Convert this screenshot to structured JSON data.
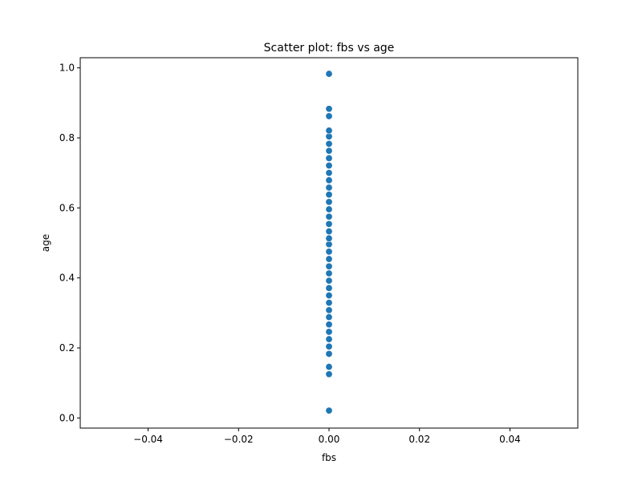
{
  "chart_data": {
    "type": "scatter",
    "title": "Scatter plot: fbs vs age",
    "xlabel": "fbs",
    "ylabel": "age",
    "xlim": [
      -0.055,
      0.055
    ],
    "ylim": [
      -0.029,
      1.029
    ],
    "xticks": [
      -0.04,
      -0.02,
      0.0,
      0.02,
      0.04
    ],
    "xtick_labels": [
      "−0.04",
      "−0.02",
      "0.00",
      "0.02",
      "0.04"
    ],
    "yticks": [
      0.0,
      0.2,
      0.4,
      0.6,
      0.8,
      1.0
    ],
    "ytick_labels": [
      "0.0",
      "0.2",
      "0.4",
      "0.6",
      "0.8",
      "1.0"
    ],
    "grid": false,
    "marker_color": "#1f77b4",
    "points": [
      {
        "x": 0,
        "y": 0.021
      },
      {
        "x": 0,
        "y": 0.125
      },
      {
        "x": 0,
        "y": 0.146
      },
      {
        "x": 0,
        "y": 0.183
      },
      {
        "x": 0,
        "y": 0.204
      },
      {
        "x": 0,
        "y": 0.225
      },
      {
        "x": 0,
        "y": 0.246
      },
      {
        "x": 0,
        "y": 0.267
      },
      {
        "x": 0,
        "y": 0.288
      },
      {
        "x": 0,
        "y": 0.308
      },
      {
        "x": 0,
        "y": 0.329
      },
      {
        "x": 0,
        "y": 0.35
      },
      {
        "x": 0,
        "y": 0.371
      },
      {
        "x": 0,
        "y": 0.392
      },
      {
        "x": 0,
        "y": 0.413
      },
      {
        "x": 0,
        "y": 0.433
      },
      {
        "x": 0,
        "y": 0.454
      },
      {
        "x": 0,
        "y": 0.475
      },
      {
        "x": 0,
        "y": 0.496
      },
      {
        "x": 0,
        "y": 0.513
      },
      {
        "x": 0,
        "y": 0.533
      },
      {
        "x": 0,
        "y": 0.554
      },
      {
        "x": 0,
        "y": 0.575
      },
      {
        "x": 0,
        "y": 0.596
      },
      {
        "x": 0,
        "y": 0.617
      },
      {
        "x": 0,
        "y": 0.638
      },
      {
        "x": 0,
        "y": 0.658
      },
      {
        "x": 0,
        "y": 0.679
      },
      {
        "x": 0,
        "y": 0.7
      },
      {
        "x": 0,
        "y": 0.721
      },
      {
        "x": 0,
        "y": 0.742
      },
      {
        "x": 0,
        "y": 0.763
      },
      {
        "x": 0,
        "y": 0.783
      },
      {
        "x": 0,
        "y": 0.804
      },
      {
        "x": 0,
        "y": 0.821
      },
      {
        "x": 0,
        "y": 0.862
      },
      {
        "x": 0,
        "y": 0.883
      },
      {
        "x": 0,
        "y": 0.983
      }
    ]
  }
}
